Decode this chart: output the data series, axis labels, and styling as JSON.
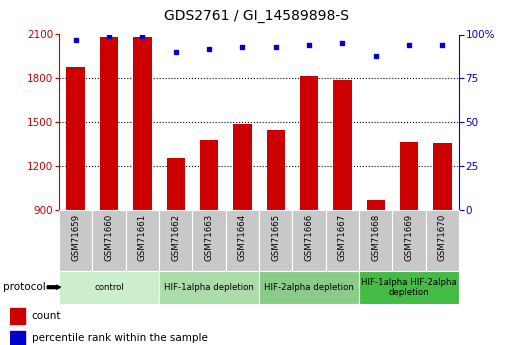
{
  "title": "GDS2761 / GI_14589898-S",
  "samples": [
    "GSM71659",
    "GSM71660",
    "GSM71661",
    "GSM71662",
    "GSM71663",
    "GSM71664",
    "GSM71665",
    "GSM71666",
    "GSM71667",
    "GSM71668",
    "GSM71669",
    "GSM71670"
  ],
  "counts": [
    1880,
    2080,
    2085,
    1260,
    1380,
    1490,
    1450,
    1820,
    1790,
    970,
    1370,
    1360
  ],
  "percentile_ranks": [
    97,
    99,
    99,
    90,
    92,
    93,
    93,
    94,
    95,
    88,
    94,
    94
  ],
  "ylim_left": [
    900,
    2100
  ],
  "ylim_right": [
    0,
    100
  ],
  "yticks_left": [
    900,
    1200,
    1500,
    1800,
    2100
  ],
  "yticks_right": [
    0,
    25,
    50,
    75,
    100
  ],
  "bar_color": "#cc0000",
  "dot_color": "#0000cc",
  "bg_color": "#ffffff",
  "label_bg_color": "#c8c8c8",
  "protocol_colors": [
    "#cceecc",
    "#aaddaa",
    "#88cc88",
    "#44bb44"
  ],
  "protocol_labels": [
    "control",
    "HIF-1alpha depletion",
    "HIF-2alpha depletion",
    "HIF-1alpha HIF-2alpha\ndepletion"
  ],
  "protocol_starts": [
    0,
    3,
    6,
    9
  ],
  "protocol_ends": [
    3,
    6,
    9,
    12
  ],
  "bar_width": 0.55
}
